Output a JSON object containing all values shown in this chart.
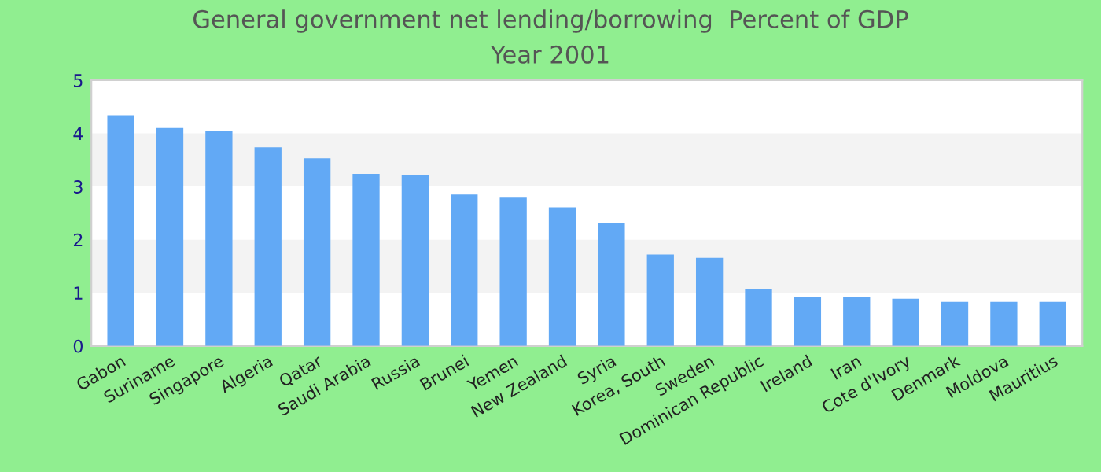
{
  "chart_data": {
    "type": "bar",
    "title": "General government net lending/borrowing  Percent of GDP",
    "subtitle": "Year 2001",
    "categories": [
      "Gabon",
      "Suriname",
      "Singapore",
      "Algeria",
      "Qatar",
      "Saudi Arabia",
      "Russia",
      "Brunei",
      "Yemen",
      "New Zealand",
      "Syria",
      "Korea, South",
      "Sweden",
      "Dominican Republic",
      "Ireland",
      "Iran",
      "Cote d'Ivory",
      "Denmark",
      "Moldova",
      "Mauritius"
    ],
    "values": [
      4.34,
      4.1,
      4.04,
      3.74,
      3.53,
      3.24,
      3.21,
      2.85,
      2.79,
      2.61,
      2.32,
      1.72,
      1.66,
      1.07,
      0.92,
      0.92,
      0.89,
      0.83,
      0.83,
      0.83
    ],
    "color": "#62a9f5",
    "ylim": [
      0,
      5
    ],
    "yticks": [
      0,
      1,
      2,
      3,
      4,
      5
    ],
    "bands": [
      {
        "axis": "y",
        "from": 1,
        "to": 2,
        "color": "#f3f3f3"
      },
      {
        "axis": "y",
        "from": 3,
        "to": 4,
        "color": "#f3f3f3"
      }
    ],
    "grid": false,
    "legend": false
  }
}
